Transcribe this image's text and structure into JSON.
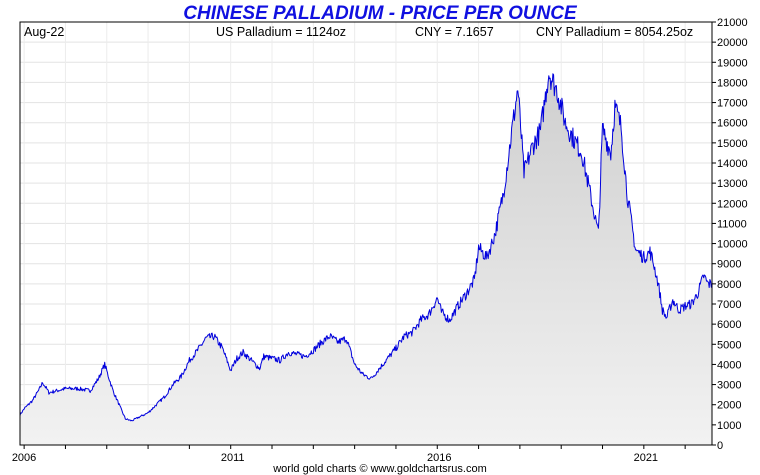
{
  "chart_data": {
    "type": "area",
    "title": "CHINESE PALLADIUM - PRICE PER OUNCE",
    "header": {
      "date": "Aug-22",
      "us_price": "US Palladium = 1124oz",
      "fx": "CNY = 7.1657",
      "local_price": "CNY Palladium = 8054.25oz"
    },
    "footer": "world gold charts © www.goldchartsrus.com",
    "x_ticks": [
      {
        "label": "2006",
        "year": 2005.95
      },
      {
        "label": "2011",
        "year": 2011.0
      },
      {
        "label": "2016",
        "year": 2016.0
      },
      {
        "label": "2021",
        "year": 2021.0
      }
    ],
    "x_range": [
      2005.9,
      2022.65
    ],
    "y_ticks": [
      0,
      1000,
      2000,
      3000,
      4000,
      5000,
      6000,
      7000,
      8000,
      9000,
      10000,
      11000,
      12000,
      13000,
      14000,
      15000,
      16000,
      17000,
      18000,
      19000,
      20000,
      21000
    ],
    "ylim": [
      0,
      21000
    ],
    "y_axis_position": "right",
    "grid": true,
    "line_color": "#0000dd",
    "fill_color_top": "#cfcfcf",
    "fill_color_bottom": "#f2f2f2",
    "series": [
      {
        "x": [
          2005.9,
          2006.0,
          2006.2,
          2006.35,
          2006.45,
          2006.6,
          2006.8,
          2007.0,
          2007.3,
          2007.6,
          2007.8,
          2007.95,
          2008.15,
          2008.3,
          2008.45,
          2008.6,
          2008.8,
          2008.9,
          2009.0,
          2009.2,
          2009.4,
          2009.6,
          2009.8,
          2010.0,
          2010.2,
          2010.4,
          2010.6,
          2010.8,
          2011.0,
          2011.15,
          2011.3,
          2011.5,
          2011.7,
          2011.8,
          2012.0,
          2012.2,
          2012.4,
          2012.6,
          2012.8,
          2013.0,
          2013.2,
          2013.4,
          2013.6,
          2013.8,
          2014.0,
          2014.2,
          2014.4,
          2014.6,
          2014.8,
          2015.0,
          2015.2,
          2015.4,
          2015.6,
          2015.8,
          2016.0,
          2016.1,
          2016.3,
          2016.5,
          2016.7,
          2016.9,
          2017.0,
          2017.2,
          2017.4,
          2017.6,
          2017.8,
          2017.95,
          2018.1,
          2018.3,
          2018.5,
          2018.7,
          2018.9,
          2019.1,
          2019.3,
          2019.5,
          2019.6,
          2019.8,
          2019.9,
          2020.0,
          2020.1,
          2020.2,
          2020.3,
          2020.45,
          2020.6,
          2020.8,
          2021.0,
          2021.15,
          2021.25,
          2021.35,
          2021.45,
          2021.55,
          2021.7,
          2021.85,
          2022.0,
          2022.15,
          2022.3,
          2022.45,
          2022.55,
          2022.65
        ],
        "y": [
          1500,
          1800,
          2200,
          2700,
          3100,
          2600,
          2700,
          2800,
          2800,
          2700,
          3300,
          4000,
          2700,
          2000,
          1300,
          1200,
          1400,
          1500,
          1600,
          2000,
          2400,
          3000,
          3400,
          4200,
          4700,
          5300,
          5400,
          4800,
          3700,
          4300,
          4600,
          4200,
          3800,
          4400,
          4300,
          4200,
          4600,
          4500,
          4400,
          4700,
          5100,
          5400,
          5100,
          5300,
          4000,
          3500,
          3300,
          3800,
          4300,
          4800,
          5400,
          5600,
          6200,
          6500,
          7300,
          6600,
          6200,
          6900,
          7500,
          8200,
          9800,
          9300,
          10500,
          12500,
          15500,
          17700,
          13500,
          14800,
          15600,
          18500,
          17600,
          16000,
          15200,
          14500,
          13500,
          11500,
          10500,
          15700,
          15100,
          14500,
          16800,
          15800,
          12400,
          9700,
          9300,
          9600,
          8900,
          8000,
          6700,
          6300,
          7200,
          6700,
          6900,
          7000,
          7500,
          8400,
          8000,
          8000
        ]
      }
    ]
  }
}
